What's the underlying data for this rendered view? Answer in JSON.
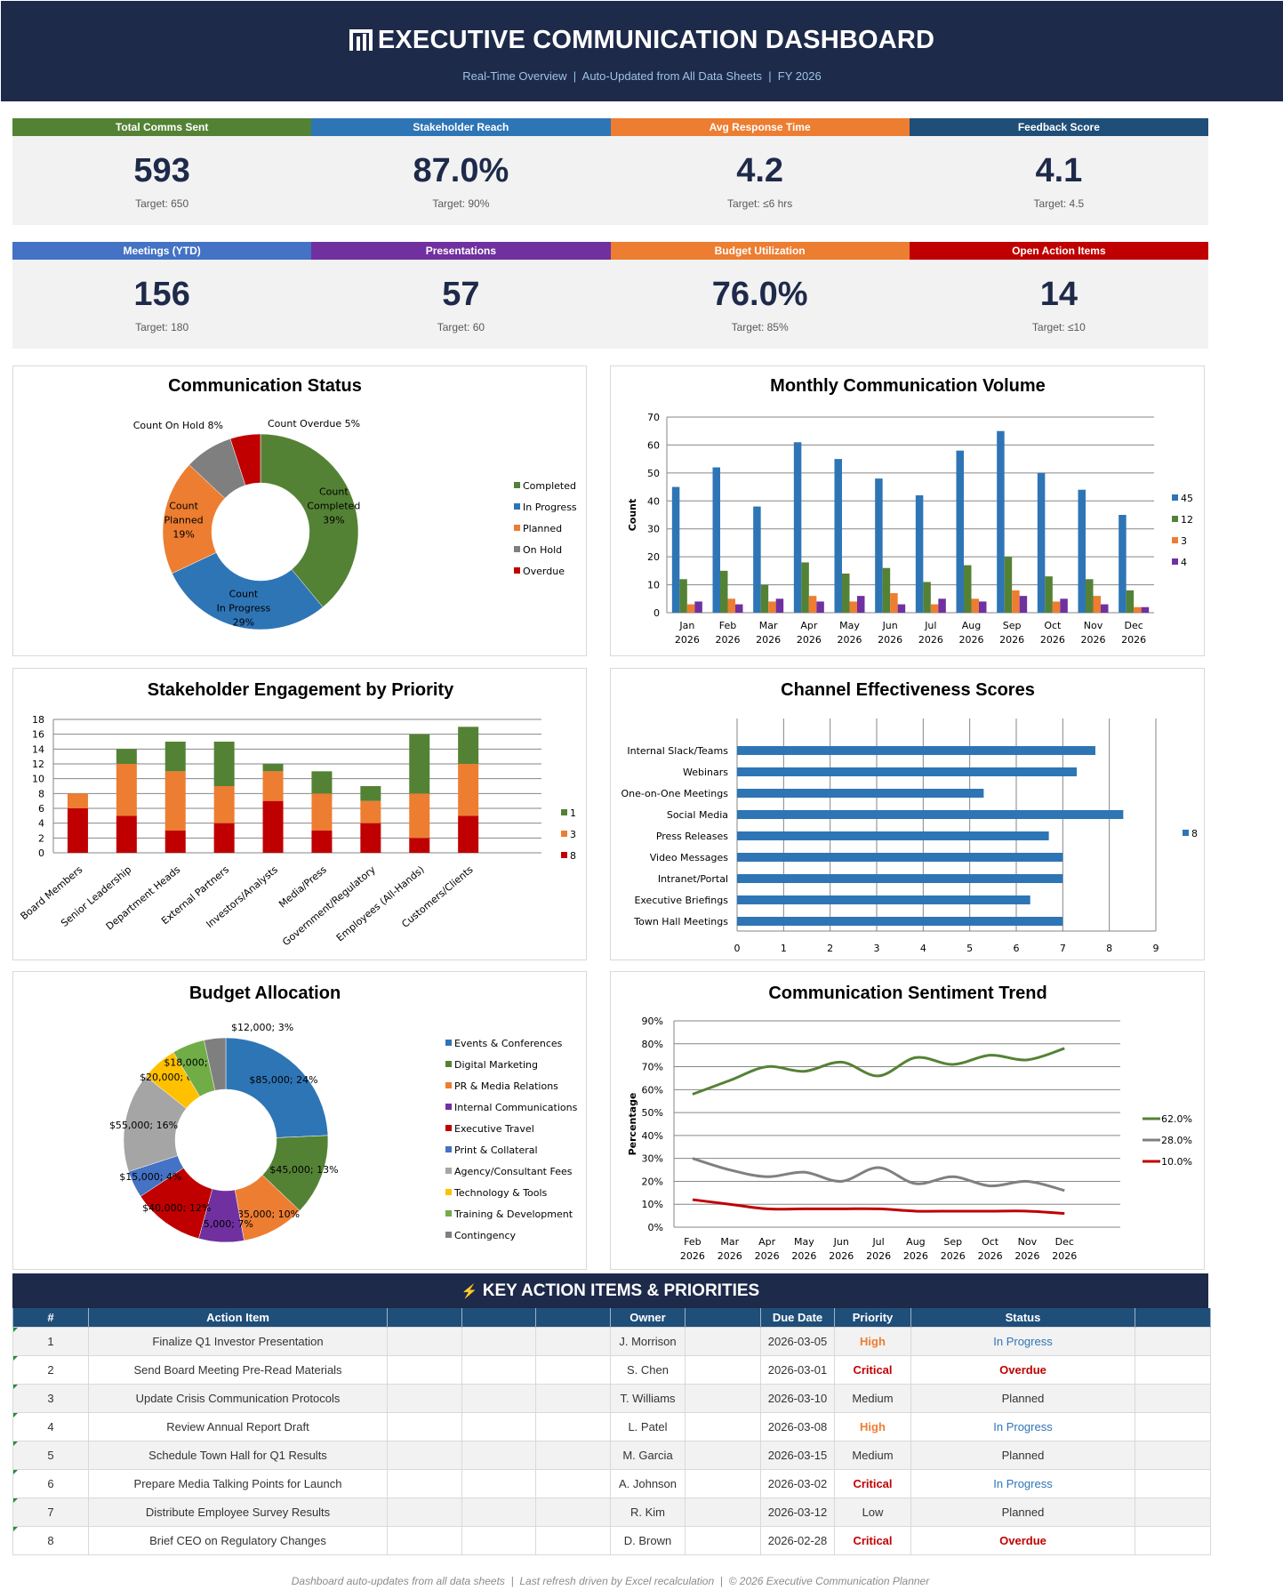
{
  "header": {
    "logo_icon": "bar-chart-logo-icon",
    "title": "EXECUTIVE COMMUNICATION DASHBOARD",
    "subtitle": "Real-Time Overview  |  Auto-Updated from All Data Sheets  |  FY 2026"
  },
  "kpis": [
    {
      "label": "Total Comms Sent",
      "value": "593",
      "target": "Target: 650",
      "color": "#548235"
    },
    {
      "label": "Stakeholder Reach",
      "value": "87.0%",
      "target": "Target: 90%",
      "color": "#2E75B6"
    },
    {
      "label": "Avg Response Time",
      "value": "4.2",
      "target": "Target: ≤6 hrs",
      "color": "#ED7D31"
    },
    {
      "label": "Feedback Score",
      "value": "4.1",
      "target": "Target: 4.5",
      "color": "#1F4E79"
    },
    {
      "label": "Meetings (YTD)",
      "value": "156",
      "target": "Target: 180",
      "color": "#4472C4"
    },
    {
      "label": "Presentations",
      "value": "57",
      "target": "Target: 60",
      "color": "#7030A0"
    },
    {
      "label": "Budget Utilization",
      "value": "76.0%",
      "target": "Target: 85%",
      "color": "#ED7D31"
    },
    {
      "label": "Open Action Items",
      "value": "14",
      "target": "Target: ≤10",
      "color": "#C00000"
    }
  ],
  "chart_data": [
    {
      "id": "status",
      "type": "pie",
      "variant": "donut",
      "title": "Communication Status",
      "series_name": "Count",
      "categories": [
        "Completed",
        "In Progress",
        "Planned",
        "On Hold",
        "Overdue"
      ],
      "values": [
        39,
        29,
        19,
        8,
        5
      ],
      "value_unit": "%",
      "colors": [
        "#548235",
        "#2E75B6",
        "#ED7D31",
        "#7F7F7F",
        "#C00000"
      ],
      "legend": "right"
    },
    {
      "id": "monthly",
      "type": "bar",
      "title": "Monthly Communication Volume",
      "ylabel": "Count",
      "ylim": [
        0,
        70
      ],
      "yticks": [
        0,
        10,
        20,
        30,
        40,
        50,
        60,
        70
      ],
      "grid": true,
      "legend": "right",
      "categories": [
        "Jan 2026",
        "Feb 2026",
        "Mar 2026",
        "Apr 2026",
        "May 2026",
        "Jun 2026",
        "Jul 2026",
        "Aug 2026",
        "Sep 2026",
        "Oct 2026",
        "Nov 2026",
        "Dec 2026"
      ],
      "series": [
        {
          "name": "45",
          "color": "#2E75B6",
          "values": [
            45,
            52,
            38,
            61,
            55,
            48,
            42,
            58,
            65,
            50,
            44,
            35
          ]
        },
        {
          "name": "12",
          "color": "#548235",
          "values": [
            12,
            15,
            10,
            18,
            14,
            16,
            11,
            17,
            20,
            13,
            12,
            8
          ]
        },
        {
          "name": "3",
          "color": "#ED7D31",
          "values": [
            3,
            5,
            4,
            6,
            4,
            7,
            3,
            5,
            8,
            4,
            6,
            2
          ]
        },
        {
          "name": "4",
          "color": "#7030A0",
          "values": [
            4,
            3,
            5,
            4,
            6,
            3,
            5,
            4,
            6,
            5,
            3,
            2
          ]
        }
      ]
    },
    {
      "id": "stakeholder",
      "type": "bar",
      "variant": "stacked",
      "title": "Stakeholder Engagement by Priority",
      "ylim": [
        0,
        18
      ],
      "yticks": [
        0,
        2,
        4,
        6,
        8,
        10,
        12,
        14,
        16,
        18
      ],
      "grid": true,
      "legend": "right",
      "categories": [
        "Board Members",
        "Senior Leadership",
        "Department Heads",
        "External Partners",
        "Investors/Analysts",
        "Media/Press",
        "Government/Regulatory",
        "Employees (All-Hands)",
        "Customers/Clients"
      ],
      "series": [
        {
          "name": "8",
          "color": "#C00000",
          "values": [
            6,
            5,
            3,
            4,
            7,
            3,
            4,
            2,
            5
          ]
        },
        {
          "name": "3",
          "color": "#ED7D31",
          "values": [
            2,
            7,
            8,
            5,
            4,
            5,
            3,
            6,
            7
          ]
        },
        {
          "name": "1",
          "color": "#548235",
          "values": [
            0,
            2,
            4,
            6,
            1,
            3,
            2,
            8,
            5
          ]
        }
      ]
    },
    {
      "id": "channel",
      "type": "bar",
      "variant": "horizontal",
      "title": "Channel Effectiveness Scores",
      "xlim": [
        0,
        9
      ],
      "xticks": [
        0,
        1,
        2,
        3,
        4,
        5,
        6,
        7,
        8,
        9
      ],
      "grid": true,
      "legend": "right",
      "categories": [
        "Internal Slack/Teams",
        "Webinars",
        "One-on-One Meetings",
        "Social Media",
        "Press Releases",
        "Video Messages",
        "Intranet/Portal",
        "Executive Briefings",
        "Town Hall Meetings"
      ],
      "series": [
        {
          "name": "8",
          "color": "#2E75B6",
          "values": [
            7.7,
            7.3,
            5.3,
            8.3,
            6.7,
            7.0,
            7.0,
            6.3,
            7.0
          ]
        }
      ]
    },
    {
      "id": "budget",
      "type": "pie",
      "variant": "donut",
      "title": "Budget Allocation",
      "categories": [
        "Events & Conferences",
        "Digital Marketing",
        "PR & Media Relations",
        "Internal Communications",
        "Executive Travel",
        "Print & Collateral",
        "Agency/Consultant Fees",
        "Technology & Tools",
        "Training & Development",
        "Contingency"
      ],
      "values": [
        85000,
        45000,
        35000,
        25000,
        40000,
        15000,
        55000,
        20000,
        18000,
        12000
      ],
      "percents": [
        24,
        13,
        10,
        7,
        12,
        4,
        16,
        6,
        5,
        3
      ],
      "colors": [
        "#2E75B6",
        "#548235",
        "#ED7D31",
        "#7030A0",
        "#C00000",
        "#4472C4",
        "#A5A5A5",
        "#FFC000",
        "#70AD47",
        "#7F7F7F"
      ],
      "legend": "right"
    },
    {
      "id": "sentiment",
      "type": "line",
      "title": "Communication Sentiment Trend",
      "ylabel": "Percentage",
      "ylim": [
        0,
        90
      ],
      "yticks": [
        "0%",
        "10%",
        "20%",
        "30%",
        "40%",
        "50%",
        "60%",
        "70%",
        "80%",
        "90%"
      ],
      "grid": true,
      "legend": "right",
      "categories": [
        "Feb 2026",
        "Mar 2026",
        "Apr 2026",
        "May 2026",
        "Jun 2026",
        "Jul 2026",
        "Aug 2026",
        "Sep 2026",
        "Oct 2026",
        "Nov 2026",
        "Dec 2026"
      ],
      "series": [
        {
          "name": "62.0%",
          "color": "#548235",
          "values": [
            58,
            64,
            70,
            68,
            72,
            66,
            74,
            71,
            75,
            73,
            78
          ]
        },
        {
          "name": "28.0%",
          "color": "#808080",
          "values": [
            30,
            25,
            22,
            24,
            20,
            26,
            19,
            22,
            18,
            20,
            16
          ]
        },
        {
          "name": "10.0%",
          "color": "#C00000",
          "values": [
            12,
            10,
            8,
            8,
            8,
            8,
            7,
            7,
            7,
            7,
            6
          ]
        }
      ]
    }
  ],
  "actions": {
    "icon": "⚡",
    "title": "KEY ACTION ITEMS & PRIORITIES",
    "columns": [
      "#",
      "Action Item",
      "",
      "",
      "",
      "Owner",
      "",
      "Due Date",
      "Priority",
      "Status",
      ""
    ],
    "priority_colors": {
      "High": "#ED7D31",
      "Critical": "#C00000",
      "Medium": "#333333",
      "Low": "#333333"
    },
    "status_colors": {
      "In Progress": "#2E75B6",
      "Overdue": "#C00000",
      "Planned": "#333333"
    },
    "rows": [
      {
        "num": "1",
        "item": "Finalize Q1 Investor Presentation",
        "owner": "J. Morrison",
        "due": "2026-03-05",
        "priority": "High",
        "status": "In Progress"
      },
      {
        "num": "2",
        "item": "Send Board Meeting Pre-Read Materials",
        "owner": "S. Chen",
        "due": "2026-03-01",
        "priority": "Critical",
        "status": "Overdue"
      },
      {
        "num": "3",
        "item": "Update Crisis Communication Protocols",
        "owner": "T. Williams",
        "due": "2026-03-10",
        "priority": "Medium",
        "status": "Planned"
      },
      {
        "num": "4",
        "item": "Review Annual Report Draft",
        "owner": "L. Patel",
        "due": "2026-03-08",
        "priority": "High",
        "status": "In Progress"
      },
      {
        "num": "5",
        "item": "Schedule Town Hall for Q1 Results",
        "owner": "M. Garcia",
        "due": "2026-03-15",
        "priority": "Medium",
        "status": "Planned"
      },
      {
        "num": "6",
        "item": "Prepare Media Talking Points for Launch",
        "owner": "A. Johnson",
        "due": "2026-03-02",
        "priority": "Critical",
        "status": "In Progress"
      },
      {
        "num": "7",
        "item": "Distribute Employee Survey Results",
        "owner": "R. Kim",
        "due": "2026-03-12",
        "priority": "Low",
        "status": "Planned"
      },
      {
        "num": "8",
        "item": "Brief CEO on Regulatory Changes",
        "owner": "D. Brown",
        "due": "2026-02-28",
        "priority": "Critical",
        "status": "Overdue"
      }
    ]
  },
  "footer": "Dashboard auto-updates from all data sheets  |  Last refresh driven by Excel recalculation  |  © 2026 Executive Communication Planner"
}
